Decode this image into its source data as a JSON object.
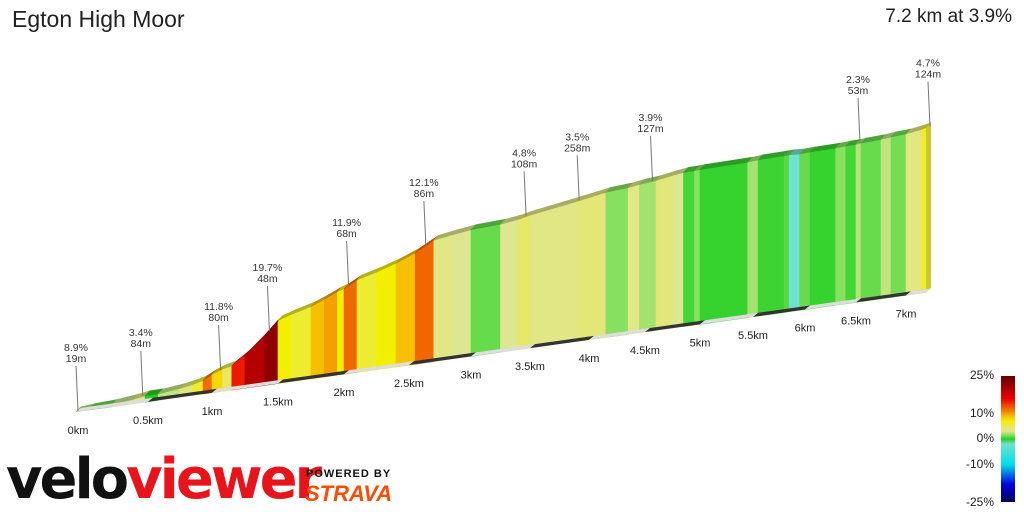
{
  "header": {
    "title": "Egton High Moor",
    "summary": "7.2 km at 3.9%"
  },
  "chart_data": {
    "type": "area",
    "title": "Egton High Moor",
    "distance_km": 7.2,
    "avg_gradient_pct": 3.9,
    "x_ticks": [
      "0km",
      "0.5km",
      "1km",
      "1.5km",
      "2km",
      "2.5km",
      "3km",
      "3.5km",
      "4km",
      "4.5km",
      "5km",
      "5.5km",
      "6km",
      "6.5km",
      "7km"
    ],
    "segments_start_km_gradient_pct": [
      [
        0,
        2
      ],
      [
        0.1,
        1
      ],
      [
        0.25,
        2.5
      ],
      [
        0.4,
        3.4
      ],
      [
        0.48,
        0
      ],
      [
        0.58,
        2.5
      ],
      [
        0.75,
        4
      ],
      [
        0.85,
        6
      ],
      [
        0.93,
        11.8
      ],
      [
        1.0,
        8
      ],
      [
        1.08,
        5
      ],
      [
        1.15,
        15
      ],
      [
        1.25,
        19.7
      ],
      [
        1.4,
        22
      ],
      [
        1.5,
        7
      ],
      [
        1.6,
        6
      ],
      [
        1.75,
        9
      ],
      [
        1.85,
        10
      ],
      [
        1.95,
        7
      ],
      [
        2.0,
        12
      ],
      [
        2.1,
        6
      ],
      [
        2.25,
        7
      ],
      [
        2.4,
        9
      ],
      [
        2.55,
        12.1
      ],
      [
        2.7,
        3.5
      ],
      [
        2.85,
        3
      ],
      [
        3.0,
        1
      ],
      [
        3.25,
        3
      ],
      [
        3.4,
        4.8
      ],
      [
        3.5,
        3.5
      ],
      [
        3.9,
        4
      ],
      [
        4.15,
        1.5
      ],
      [
        4.35,
        3.5
      ],
      [
        4.45,
        2
      ],
      [
        4.6,
        3.9
      ],
      [
        4.75,
        3
      ],
      [
        4.85,
        0.5
      ],
      [
        4.95,
        1.5
      ],
      [
        5.0,
        0.3
      ],
      [
        5.45,
        2
      ],
      [
        5.55,
        0.4
      ],
      [
        5.8,
        0.8
      ],
      [
        5.85,
        -2
      ],
      [
        5.95,
        1
      ],
      [
        6.05,
        0.3
      ],
      [
        6.3,
        1.5
      ],
      [
        6.4,
        0.5
      ],
      [
        6.5,
        2.3
      ],
      [
        6.55,
        1
      ],
      [
        6.75,
        2.5
      ],
      [
        6.85,
        1.2
      ],
      [
        7.0,
        3.5
      ],
      [
        7.15,
        6
      ]
    ],
    "annotations": [
      {
        "km": 0.0,
        "pct": "8.9%",
        "len": "19m"
      },
      {
        "km": 0.45,
        "pct": "3.4%",
        "len": "84m"
      },
      {
        "km": 1.05,
        "pct": "11.8%",
        "len": "80m"
      },
      {
        "km": 1.42,
        "pct": "19.7%",
        "len": "48m"
      },
      {
        "km": 2.02,
        "pct": "11.9%",
        "len": "68m"
      },
      {
        "km": 2.62,
        "pct": "12.1%",
        "len": "86m"
      },
      {
        "km": 3.45,
        "pct": "4.8%",
        "len": "108m"
      },
      {
        "km": 3.9,
        "pct": "3.5%",
        "len": "258m"
      },
      {
        "km": 4.55,
        "pct": "3.9%",
        "len": "127m"
      },
      {
        "km": 6.52,
        "pct": "2.3%",
        "len": "53m"
      },
      {
        "km": 7.2,
        "pct": "4.7%",
        "len": "124m"
      }
    ],
    "legend": {
      "labels": [
        "25%",
        "10%",
        "0%",
        "-10%",
        "-25%"
      ],
      "color_stops": [
        [
          -25,
          "#00005a"
        ],
        [
          -18,
          "#0000e0"
        ],
        [
          -10,
          "#00e0e8"
        ],
        [
          -2,
          "#70e0d0"
        ],
        [
          0,
          "#22d022"
        ],
        [
          1.5,
          "#88e060"
        ],
        [
          3,
          "#dde690"
        ],
        [
          5,
          "#e8e860"
        ],
        [
          7,
          "#f2f000"
        ],
        [
          9,
          "#f5c000"
        ],
        [
          11,
          "#f08000"
        ],
        [
          13,
          "#f05000"
        ],
        [
          16,
          "#e80000"
        ],
        [
          20,
          "#b00000"
        ],
        [
          25,
          "#600000"
        ]
      ]
    }
  },
  "branding": {
    "logo_velo": "velo",
    "logo_viewer": "viewer",
    "powered_by": "POWERED BY",
    "strava": "STRAVA"
  }
}
